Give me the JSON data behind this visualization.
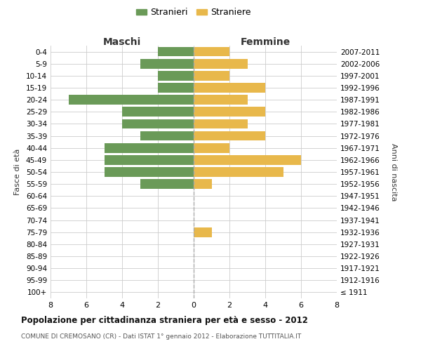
{
  "age_groups": [
    "0-4",
    "5-9",
    "10-14",
    "15-19",
    "20-24",
    "25-29",
    "30-34",
    "35-39",
    "40-44",
    "45-49",
    "50-54",
    "55-59",
    "60-64",
    "65-69",
    "70-74",
    "75-79",
    "80-84",
    "85-89",
    "90-94",
    "95-99",
    "100+"
  ],
  "birth_years": [
    "2007-2011",
    "2002-2006",
    "1997-2001",
    "1992-1996",
    "1987-1991",
    "1982-1986",
    "1977-1981",
    "1972-1976",
    "1967-1971",
    "1962-1966",
    "1957-1961",
    "1952-1956",
    "1947-1951",
    "1942-1946",
    "1937-1941",
    "1932-1936",
    "1927-1931",
    "1922-1926",
    "1917-1921",
    "1912-1916",
    "≤ 1911"
  ],
  "maschi": [
    2,
    3,
    2,
    2,
    7,
    4,
    4,
    3,
    5,
    5,
    5,
    3,
    0,
    0,
    0,
    0,
    0,
    0,
    0,
    0,
    0
  ],
  "femmine": [
    2,
    3,
    2,
    4,
    3,
    4,
    3,
    4,
    2,
    6,
    5,
    1,
    0,
    0,
    0,
    1,
    0,
    0,
    0,
    0,
    0
  ],
  "maschi_color": "#6a9a58",
  "femmine_color": "#e8b84b",
  "background_color": "#ffffff",
  "grid_color": "#cccccc",
  "title": "Popolazione per cittadinanza straniera per età e sesso - 2012",
  "subtitle": "COMUNE DI CREMOSANO (CR) - Dati ISTAT 1° gennaio 2012 - Elaborazione TUTTITALIA.IT",
  "ylabel_left": "Fasce di età",
  "ylabel_right": "Anni di nascita",
  "xlabel_maschi": "Maschi",
  "xlabel_femmine": "Femmine",
  "legend_maschi": "Stranieri",
  "legend_femmine": "Straniere",
  "xlim": 8,
  "bar_height": 0.8
}
